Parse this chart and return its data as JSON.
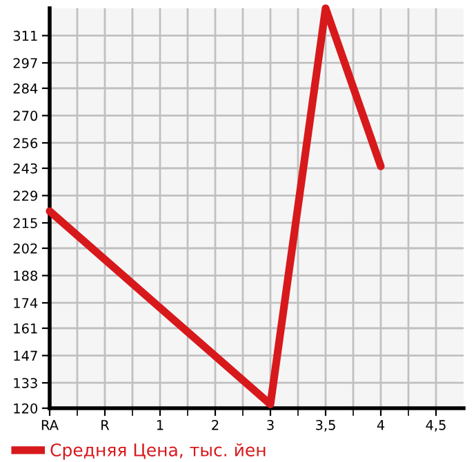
{
  "chart_data": {
    "type": "line",
    "categories": [
      "RA",
      "R",
      "1",
      "2",
      "3",
      "3,5",
      "4",
      "4,5"
    ],
    "series": [
      {
        "name": "Средняя Цена, тыс. йен",
        "color": "#d7191c",
        "values": [
          221,
          null,
          null,
          null,
          122,
          325,
          244,
          null
        ]
      }
    ],
    "ylim": [
      120,
      325
    ],
    "yticks": [
      120,
      133,
      147,
      161,
      174,
      188,
      202,
      215,
      229,
      243,
      256,
      270,
      284,
      297,
      311
    ],
    "grid": true,
    "legend": "bottom",
    "marker": "none",
    "line_style": "solid"
  }
}
